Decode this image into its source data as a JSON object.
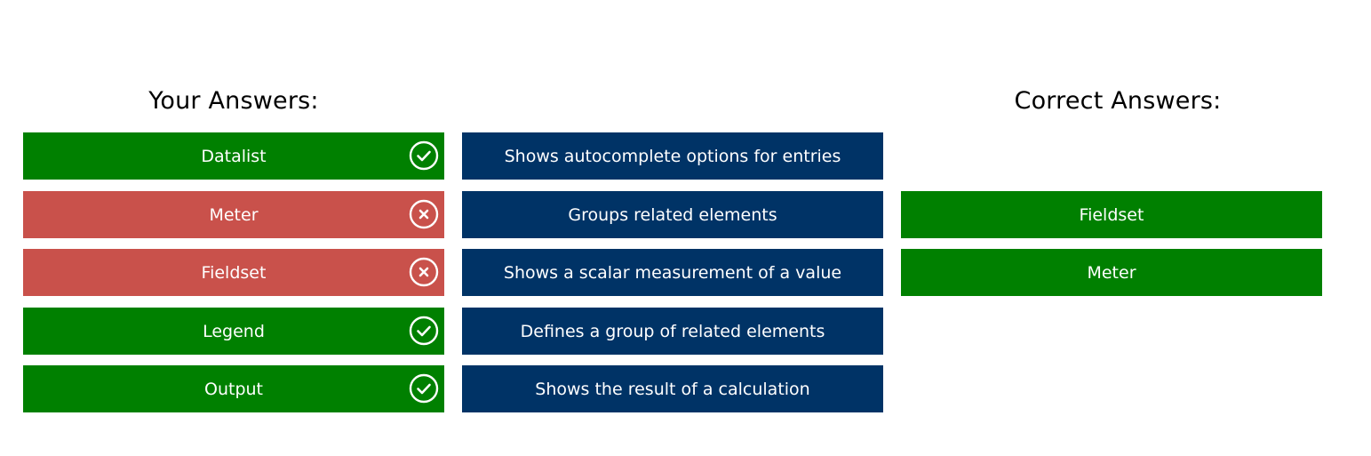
{
  "headings": {
    "your_answers": "Your Answers:",
    "correct_answers": "Correct Answers:"
  },
  "colors": {
    "correct": "#008000",
    "incorrect": "#c9514b",
    "description": "#003366"
  },
  "rows": [
    {
      "answer": "Datalist",
      "status": "correct",
      "icon": "check-circle-icon",
      "description": "Shows autocomplete options for entries",
      "correct_answer": ""
    },
    {
      "answer": "Meter",
      "status": "incorrect",
      "icon": "x-circle-icon",
      "description": "Groups related elements",
      "correct_answer": "Fieldset"
    },
    {
      "answer": "Fieldset",
      "status": "incorrect",
      "icon": "x-circle-icon",
      "description": "Shows a scalar measurement of a value",
      "correct_answer": "Meter"
    },
    {
      "answer": "Legend",
      "status": "correct",
      "icon": "check-circle-icon",
      "description": "Defines a group of related elements",
      "correct_answer": ""
    },
    {
      "answer": "Output",
      "status": "correct",
      "icon": "check-circle-icon",
      "description": "Shows the result of a calculation",
      "correct_answer": ""
    }
  ]
}
